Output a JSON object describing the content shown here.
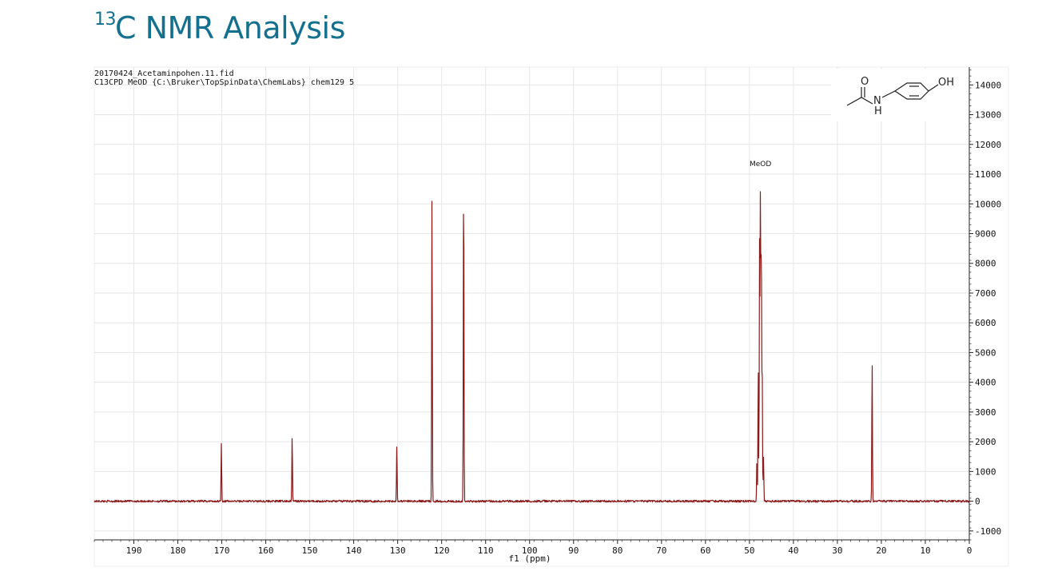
{
  "page": {
    "title_sup": "13",
    "title_main": "C NMR Analysis"
  },
  "header": {
    "line1": "20170424_Acetaminpohen.11.fid",
    "line2": "C13CPD MeOD {C:\\Bruker\\TopSpinData\\ChemLabs} chem129 5"
  },
  "molecule": {
    "oxygen_label": "O",
    "nitrogen_label": "N",
    "hydrogen_label": "H",
    "hydroxyl_label": "OH"
  },
  "chart_data": {
    "type": "line",
    "xlabel": "f1 (ppm)",
    "ylabel": "",
    "xlim": [
      199,
      0
    ],
    "ylim": [
      -1300,
      14600
    ],
    "x_ticks": [
      190,
      180,
      170,
      160,
      150,
      140,
      130,
      120,
      110,
      100,
      90,
      80,
      70,
      60,
      50,
      40,
      30,
      20,
      10,
      0
    ],
    "y_ticks": [
      14000,
      13000,
      12000,
      11000,
      10000,
      9000,
      8000,
      7000,
      6000,
      5000,
      4000,
      3000,
      2000,
      1000,
      0,
      -1000
    ],
    "grid": true,
    "y_axis_side": "right",
    "line_color": "#8b1a1a",
    "peaks": [
      {
        "ppm": 170.1,
        "intensity": 1950
      },
      {
        "ppm": 154.0,
        "intensity": 2200
      },
      {
        "ppm": 130.2,
        "intensity": 1880
      },
      {
        "ppm": 122.2,
        "intensity": 10350
      },
      {
        "ppm": 115.0,
        "intensity": 11200
      },
      {
        "ppm": 48.3,
        "intensity": 1500
      },
      {
        "ppm": 48.0,
        "intensity": 4500
      },
      {
        "ppm": 47.7,
        "intensity": 8700
      },
      {
        "ppm": 47.5,
        "intensity": 10600
      },
      {
        "ppm": 47.3,
        "intensity": 8900
      },
      {
        "ppm": 47.1,
        "intensity": 4550
      },
      {
        "ppm": 46.8,
        "intensity": 1500
      },
      {
        "ppm": 22.1,
        "intensity": 4750
      }
    ],
    "annotations": [
      {
        "text": "MeOD",
        "ppm": 47.5,
        "intensity": 11350
      }
    ]
  }
}
